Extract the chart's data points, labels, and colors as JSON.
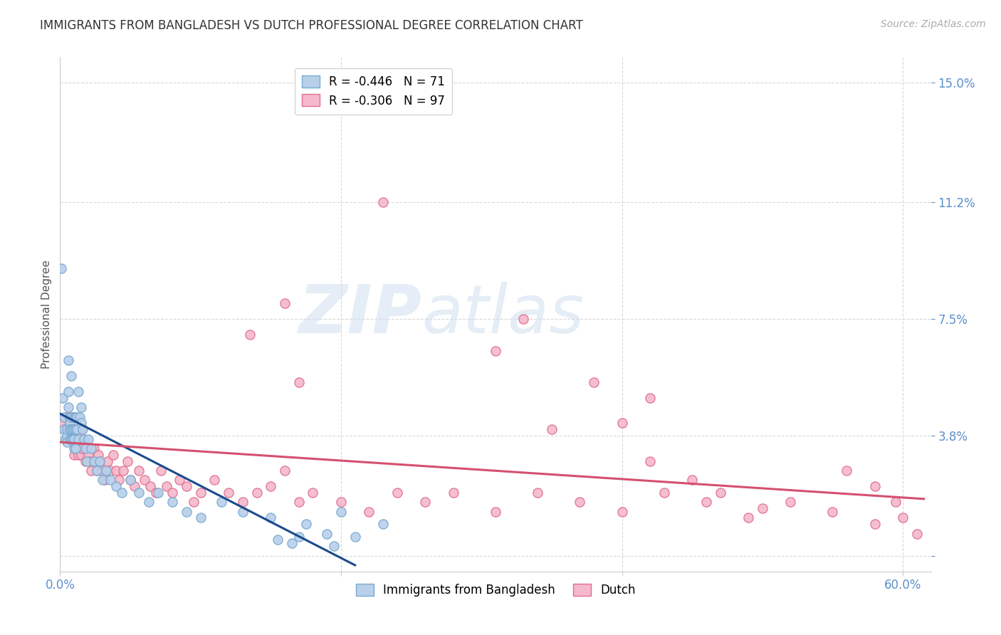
{
  "title": "IMMIGRANTS FROM BANGLADESH VS DUTCH PROFESSIONAL DEGREE CORRELATION CHART",
  "source": "Source: ZipAtlas.com",
  "ylabel": "Professional Degree",
  "yticks": [
    0.0,
    0.038,
    0.075,
    0.112,
    0.15
  ],
  "ytick_labels_right": [
    "",
    "3.8%",
    "7.5%",
    "11.2%",
    "15.0%"
  ],
  "xtick_positions": [
    0.0,
    0.2,
    0.4,
    0.6
  ],
  "xtick_labels": [
    "0.0%",
    "",
    "",
    "60.0%"
  ],
  "xlim": [
    0.0,
    0.62
  ],
  "ylim": [
    -0.005,
    0.158
  ],
  "legend_entries": [
    {
      "label": "R = -0.446   N = 71",
      "color": "#b8d0ea",
      "edge_color": "#7aaad0"
    },
    {
      "label": "R = -0.306   N = 97",
      "color": "#f5b8cc",
      "edge_color": "#e0708c"
    }
  ],
  "series_bangladesh": {
    "color": "#b8d0ea",
    "edge_color": "#7aaad0",
    "x": [
      0.001,
      0.002,
      0.003,
      0.003,
      0.004,
      0.004,
      0.005,
      0.005,
      0.005,
      0.006,
      0.006,
      0.006,
      0.007,
      0.007,
      0.007,
      0.007,
      0.007,
      0.008,
      0.008,
      0.008,
      0.008,
      0.009,
      0.009,
      0.009,
      0.01,
      0.01,
      0.01,
      0.01,
      0.011,
      0.011,
      0.011,
      0.012,
      0.012,
      0.013,
      0.013,
      0.014,
      0.015,
      0.015,
      0.016,
      0.017,
      0.018,
      0.019,
      0.02,
      0.022,
      0.024,
      0.026,
      0.028,
      0.03,
      0.033,
      0.036,
      0.04,
      0.044,
      0.05,
      0.056,
      0.063,
      0.07,
      0.08,
      0.09,
      0.1,
      0.115,
      0.13,
      0.15,
      0.175,
      0.2,
      0.23,
      0.19,
      0.21,
      0.17,
      0.155,
      0.165,
      0.195
    ],
    "y": [
      0.091,
      0.05,
      0.044,
      0.04,
      0.037,
      0.037,
      0.038,
      0.036,
      0.04,
      0.062,
      0.052,
      0.047,
      0.044,
      0.042,
      0.04,
      0.04,
      0.037,
      0.057,
      0.044,
      0.04,
      0.037,
      0.037,
      0.04,
      0.037,
      0.044,
      0.04,
      0.037,
      0.034,
      0.044,
      0.04,
      0.034,
      0.044,
      0.04,
      0.052,
      0.037,
      0.044,
      0.047,
      0.042,
      0.04,
      0.037,
      0.034,
      0.03,
      0.037,
      0.034,
      0.03,
      0.027,
      0.03,
      0.024,
      0.027,
      0.024,
      0.022,
      0.02,
      0.024,
      0.02,
      0.017,
      0.02,
      0.017,
      0.014,
      0.012,
      0.017,
      0.014,
      0.012,
      0.01,
      0.014,
      0.01,
      0.007,
      0.006,
      0.006,
      0.005,
      0.004,
      0.003
    ]
  },
  "series_dutch": {
    "color": "#f5b8cc",
    "edge_color": "#e0708c",
    "x": [
      0.002,
      0.003,
      0.004,
      0.005,
      0.006,
      0.006,
      0.007,
      0.007,
      0.008,
      0.008,
      0.009,
      0.009,
      0.01,
      0.01,
      0.011,
      0.011,
      0.012,
      0.013,
      0.014,
      0.015,
      0.015,
      0.016,
      0.017,
      0.018,
      0.019,
      0.02,
      0.021,
      0.022,
      0.024,
      0.025,
      0.026,
      0.027,
      0.028,
      0.03,
      0.032,
      0.034,
      0.036,
      0.038,
      0.04,
      0.042,
      0.045,
      0.048,
      0.05,
      0.053,
      0.056,
      0.06,
      0.064,
      0.068,
      0.072,
      0.076,
      0.08,
      0.085,
      0.09,
      0.095,
      0.1,
      0.11,
      0.12,
      0.13,
      0.14,
      0.15,
      0.16,
      0.17,
      0.18,
      0.2,
      0.22,
      0.24,
      0.26,
      0.28,
      0.31,
      0.34,
      0.37,
      0.4,
      0.43,
      0.46,
      0.49,
      0.52,
      0.55,
      0.58,
      0.6,
      0.61,
      0.23,
      0.31,
      0.33,
      0.35,
      0.38,
      0.4,
      0.42,
      0.45,
      0.47,
      0.5,
      0.16,
      0.17,
      0.135,
      0.42,
      0.56,
      0.58,
      0.595
    ],
    "y": [
      0.042,
      0.04,
      0.044,
      0.04,
      0.044,
      0.04,
      0.037,
      0.042,
      0.04,
      0.037,
      0.044,
      0.04,
      0.037,
      0.032,
      0.04,
      0.034,
      0.037,
      0.032,
      0.034,
      0.04,
      0.032,
      0.034,
      0.037,
      0.03,
      0.034,
      0.032,
      0.03,
      0.027,
      0.034,
      0.03,
      0.027,
      0.032,
      0.03,
      0.027,
      0.024,
      0.03,
      0.027,
      0.032,
      0.027,
      0.024,
      0.027,
      0.03,
      0.024,
      0.022,
      0.027,
      0.024,
      0.022,
      0.02,
      0.027,
      0.022,
      0.02,
      0.024,
      0.022,
      0.017,
      0.02,
      0.024,
      0.02,
      0.017,
      0.02,
      0.022,
      0.027,
      0.017,
      0.02,
      0.017,
      0.014,
      0.02,
      0.017,
      0.02,
      0.014,
      0.02,
      0.017,
      0.014,
      0.02,
      0.017,
      0.012,
      0.017,
      0.014,
      0.01,
      0.012,
      0.007,
      0.112,
      0.065,
      0.075,
      0.04,
      0.055,
      0.042,
      0.03,
      0.024,
      0.02,
      0.015,
      0.08,
      0.055,
      0.07,
      0.05,
      0.027,
      0.022,
      0.017
    ]
  },
  "trendline_bangladesh": {
    "color": "#1a4b8c",
    "x_start": 0.0,
    "y_start": 0.045,
    "x_end": 0.21,
    "y_end": -0.003
  },
  "trendline_dutch": {
    "color": "#d45070",
    "x_start": 0.0,
    "y_start": 0.036,
    "x_end": 0.615,
    "y_end": 0.018
  },
  "watermark_zip": "ZIP",
  "watermark_atlas": "atlas",
  "background_color": "#ffffff",
  "grid_color": "#d8d8d8",
  "title_fontsize": 12,
  "axis_label_color": "#5b8fcc",
  "tick_color": "#5b8fcc",
  "marker_size": 90,
  "marker_lw": 1.0
}
